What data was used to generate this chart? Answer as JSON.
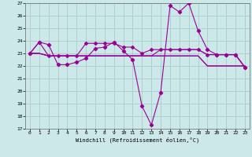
{
  "xlabel": "Windchill (Refroidissement éolien,°C)",
  "background_color": "#cce8e8",
  "grid_color": "#aacccc",
  "line_color": "#990099",
  "x_ticks": [
    0,
    1,
    2,
    3,
    4,
    5,
    6,
    7,
    8,
    9,
    10,
    11,
    12,
    13,
    14,
    15,
    16,
    17,
    18,
    19,
    20,
    21,
    22,
    23
  ],
  "y_ticks": [
    17,
    18,
    19,
    20,
    21,
    22,
    23,
    24,
    25,
    26,
    27
  ],
  "ylim": [
    17,
    27
  ],
  "xlim": [
    -0.5,
    23.5
  ],
  "series": {
    "line1": [
      23.0,
      23.9,
      23.7,
      22.1,
      22.1,
      22.3,
      22.6,
      23.4,
      23.5,
      23.9,
      23.2,
      22.5,
      18.8,
      17.3,
      19.9,
      26.8,
      26.3,
      27.0,
      24.8,
      23.3,
      22.9,
      22.9,
      22.9,
      21.9
    ],
    "line2": [
      23.0,
      23.9,
      22.8,
      22.8,
      22.8,
      22.8,
      23.8,
      23.8,
      23.8,
      23.8,
      23.5,
      23.5,
      23.0,
      23.3,
      23.3,
      23.3,
      23.3,
      23.3,
      23.3,
      22.9,
      22.9,
      22.9,
      22.9,
      21.9
    ],
    "line3": [
      23.0,
      23.0,
      22.8,
      22.8,
      22.8,
      22.8,
      22.8,
      22.8,
      22.8,
      22.8,
      22.8,
      22.8,
      22.8,
      22.8,
      22.8,
      22.8,
      22.8,
      22.8,
      22.8,
      22.0,
      22.0,
      22.0,
      22.0,
      22.0
    ],
    "line4": [
      23.0,
      23.0,
      22.8,
      22.8,
      22.8,
      22.8,
      22.8,
      22.8,
      22.8,
      22.8,
      22.8,
      22.8,
      22.8,
      22.8,
      22.8,
      22.8,
      22.8,
      22.8,
      22.8,
      22.0,
      22.0,
      22.0,
      22.0,
      22.0
    ],
    "line5": [
      23.0,
      23.0,
      22.8,
      22.8,
      22.8,
      22.8,
      22.8,
      22.8,
      22.8,
      22.8,
      22.8,
      22.8,
      22.8,
      22.8,
      23.3,
      23.3,
      23.3,
      23.3,
      23.3,
      22.9,
      22.9,
      22.9,
      22.9,
      21.9
    ]
  }
}
